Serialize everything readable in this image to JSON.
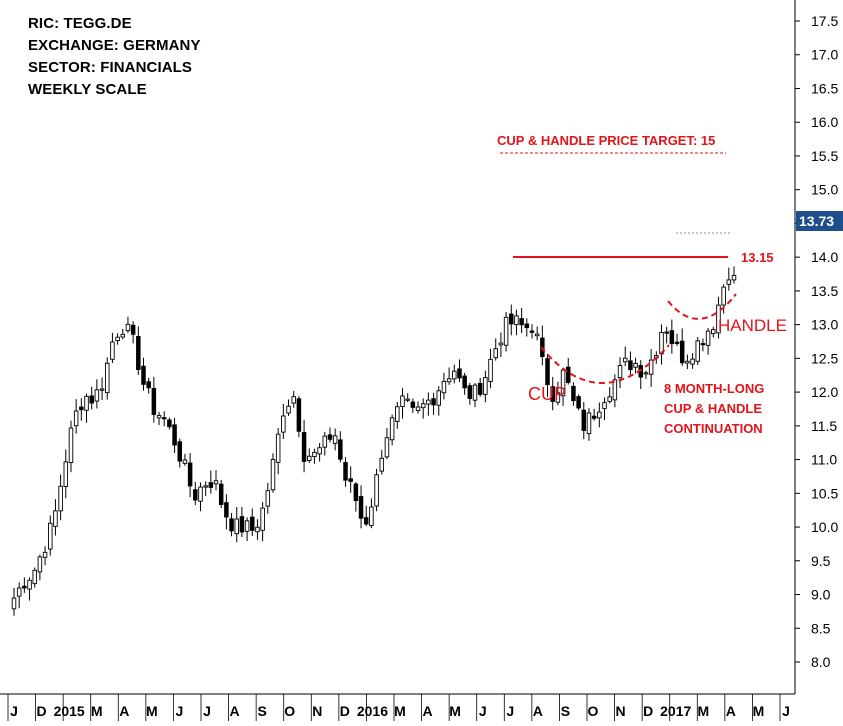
{
  "header": {
    "ric": "RIC: TEGG.DE",
    "exchange": "EXCHANGE: GERMANY",
    "sector": "SECTOR: FINANCIALS",
    "scale": "WEEKLY SCALE"
  },
  "annotations": {
    "target": "CUP & HANDLE PRICE TARGET: 15",
    "resistance": "13.15",
    "cup": "CUP",
    "handle": "HANDLE",
    "pattern_line1": "8 MONTH-LONG",
    "pattern_line2": "CUP & HANDLE",
    "pattern_line3": "CONTINUATION",
    "last_price": "13.73"
  },
  "colors": {
    "annotation": "#e0141b",
    "price_tag": "#1f4e8c",
    "candle": "#000000",
    "axis": "#000000"
  },
  "chart_data": {
    "type": "candlestick",
    "title": "",
    "xlabel": "",
    "ylabel": "",
    "ylim": [
      7.6,
      17.9
    ],
    "yticks": [
      8.0,
      8.5,
      9.0,
      9.5,
      10.0,
      10.5,
      11.0,
      11.5,
      12.0,
      12.5,
      13.0,
      13.5,
      14.0,
      14.5,
      15.0,
      15.5,
      16.0,
      16.5,
      17.0,
      17.5
    ],
    "ytick_labels": [
      "8.0",
      "8.5",
      "9.0",
      "9.5",
      "10.0",
      "10.5",
      "11.0",
      "11.5",
      "12.0",
      "12.5",
      "13.0",
      "13.5",
      "14.0",
      "14.5",
      "15.0",
      "15.5",
      "16.0",
      "16.5",
      "17.0",
      "17.5"
    ],
    "x_period": [
      "2014-11",
      "2017-07"
    ],
    "x_labels": [
      "J",
      "D",
      "2015",
      "M",
      "A",
      "M",
      "J",
      "J",
      "A",
      "S",
      "O",
      "N",
      "D",
      "2016",
      "M",
      "A",
      "M",
      "J",
      "J",
      "A",
      "S",
      "O",
      "N",
      "D",
      "2017",
      "M",
      "A",
      "M",
      "J"
    ],
    "close_levels": [
      8.95,
      9.2,
      9.35,
      9.7,
      10.1,
      10.9,
      11.6,
      11.95,
      11.9,
      12.2,
      12.85,
      13.0,
      12.7,
      12.1,
      11.75,
      11.6,
      11.3,
      10.9,
      10.45,
      10.65,
      10.7,
      10.25,
      10.0,
      10.0,
      9.95,
      10.3,
      11.0,
      11.8,
      11.95,
      11.1,
      11.05,
      11.2,
      11.45,
      10.75,
      10.5,
      10.0,
      10.5,
      11.3,
      11.6,
      11.85,
      11.65,
      11.8,
      11.95,
      12.2,
      12.35,
      12.0,
      11.95,
      12.2,
      12.6,
      12.95,
      13.05,
      12.95,
      13.0,
      12.3,
      11.95,
      12.3,
      11.8,
      11.5,
      11.7,
      11.95,
      12.15,
      12.4,
      12.45,
      12.3,
      12.55,
      13.05,
      12.7,
      12.5,
      12.65,
      12.85,
      13.05,
      13.6,
      13.73
    ],
    "levels": {
      "resistance": 13.15,
      "price_target": 15.0,
      "prior_high": 13.5,
      "last_close": 13.73
    }
  }
}
